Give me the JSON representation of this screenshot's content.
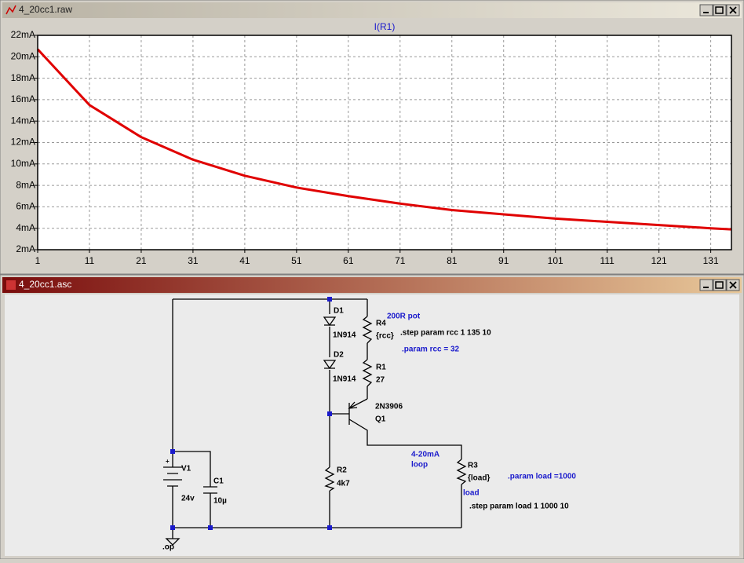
{
  "plot_window": {
    "title": "4_20cc1.raw"
  },
  "chart_data": {
    "type": "line",
    "title": "I(R1)",
    "x": [
      1,
      11,
      21,
      31,
      41,
      51,
      61,
      71,
      81,
      91,
      101,
      111,
      121,
      131,
      135
    ],
    "series": [
      {
        "name": "I(R1)",
        "color": "#e00000",
        "values": [
          20.7,
          15.5,
          12.5,
          10.4,
          8.9,
          7.8,
          7.0,
          6.3,
          5.7,
          5.3,
          4.9,
          4.6,
          4.3,
          4.0,
          3.9
        ]
      }
    ],
    "xlim": [
      1,
      135
    ],
    "xticks": [
      1,
      11,
      21,
      31,
      41,
      51,
      61,
      71,
      81,
      91,
      101,
      111,
      121,
      131
    ],
    "ylim": [
      2,
      22
    ],
    "yticks": [
      {
        "value": 2,
        "label": "2mA"
      },
      {
        "value": 4,
        "label": "4mA"
      },
      {
        "value": 6,
        "label": "6mA"
      },
      {
        "value": 8,
        "label": "8mA"
      },
      {
        "value": 10,
        "label": "10mA"
      },
      {
        "value": 12,
        "label": "12mA"
      },
      {
        "value": 14,
        "label": "14mA"
      },
      {
        "value": 16,
        "label": "16mA"
      },
      {
        "value": 18,
        "label": "18mA"
      },
      {
        "value": 20,
        "label": "20mA"
      },
      {
        "value": 22,
        "label": "22mA"
      }
    ],
    "grid": true
  },
  "schematic_window": {
    "title": "4_20cc1.asc",
    "labels": {
      "d1": "D1",
      "d1_model": "1N914",
      "d2": "D2",
      "d2_model": "1N914",
      "r4": "R4",
      "r4_value": "{rcc}",
      "r4_note": "200R pot",
      "step_rcc": ".step param rcc 1 135 10",
      "param_rcc": ".param rcc = 32",
      "r1": "R1",
      "r1_value": "27",
      "q1_model": "2N3906",
      "q1": "Q1",
      "loop_note_1": "4-20mA",
      "loop_note_2": "loop",
      "r3": "R3",
      "r3_value": "{load}",
      "param_load": ".param load =1000",
      "load_note": "load",
      "step_load": ".step param load 1 1000 10",
      "r2": "R2",
      "r2_value": "4k7",
      "v1": "V1",
      "v1_value": "24v",
      "c1": "C1",
      "c1_value": "10µ",
      "op": ".op"
    }
  }
}
